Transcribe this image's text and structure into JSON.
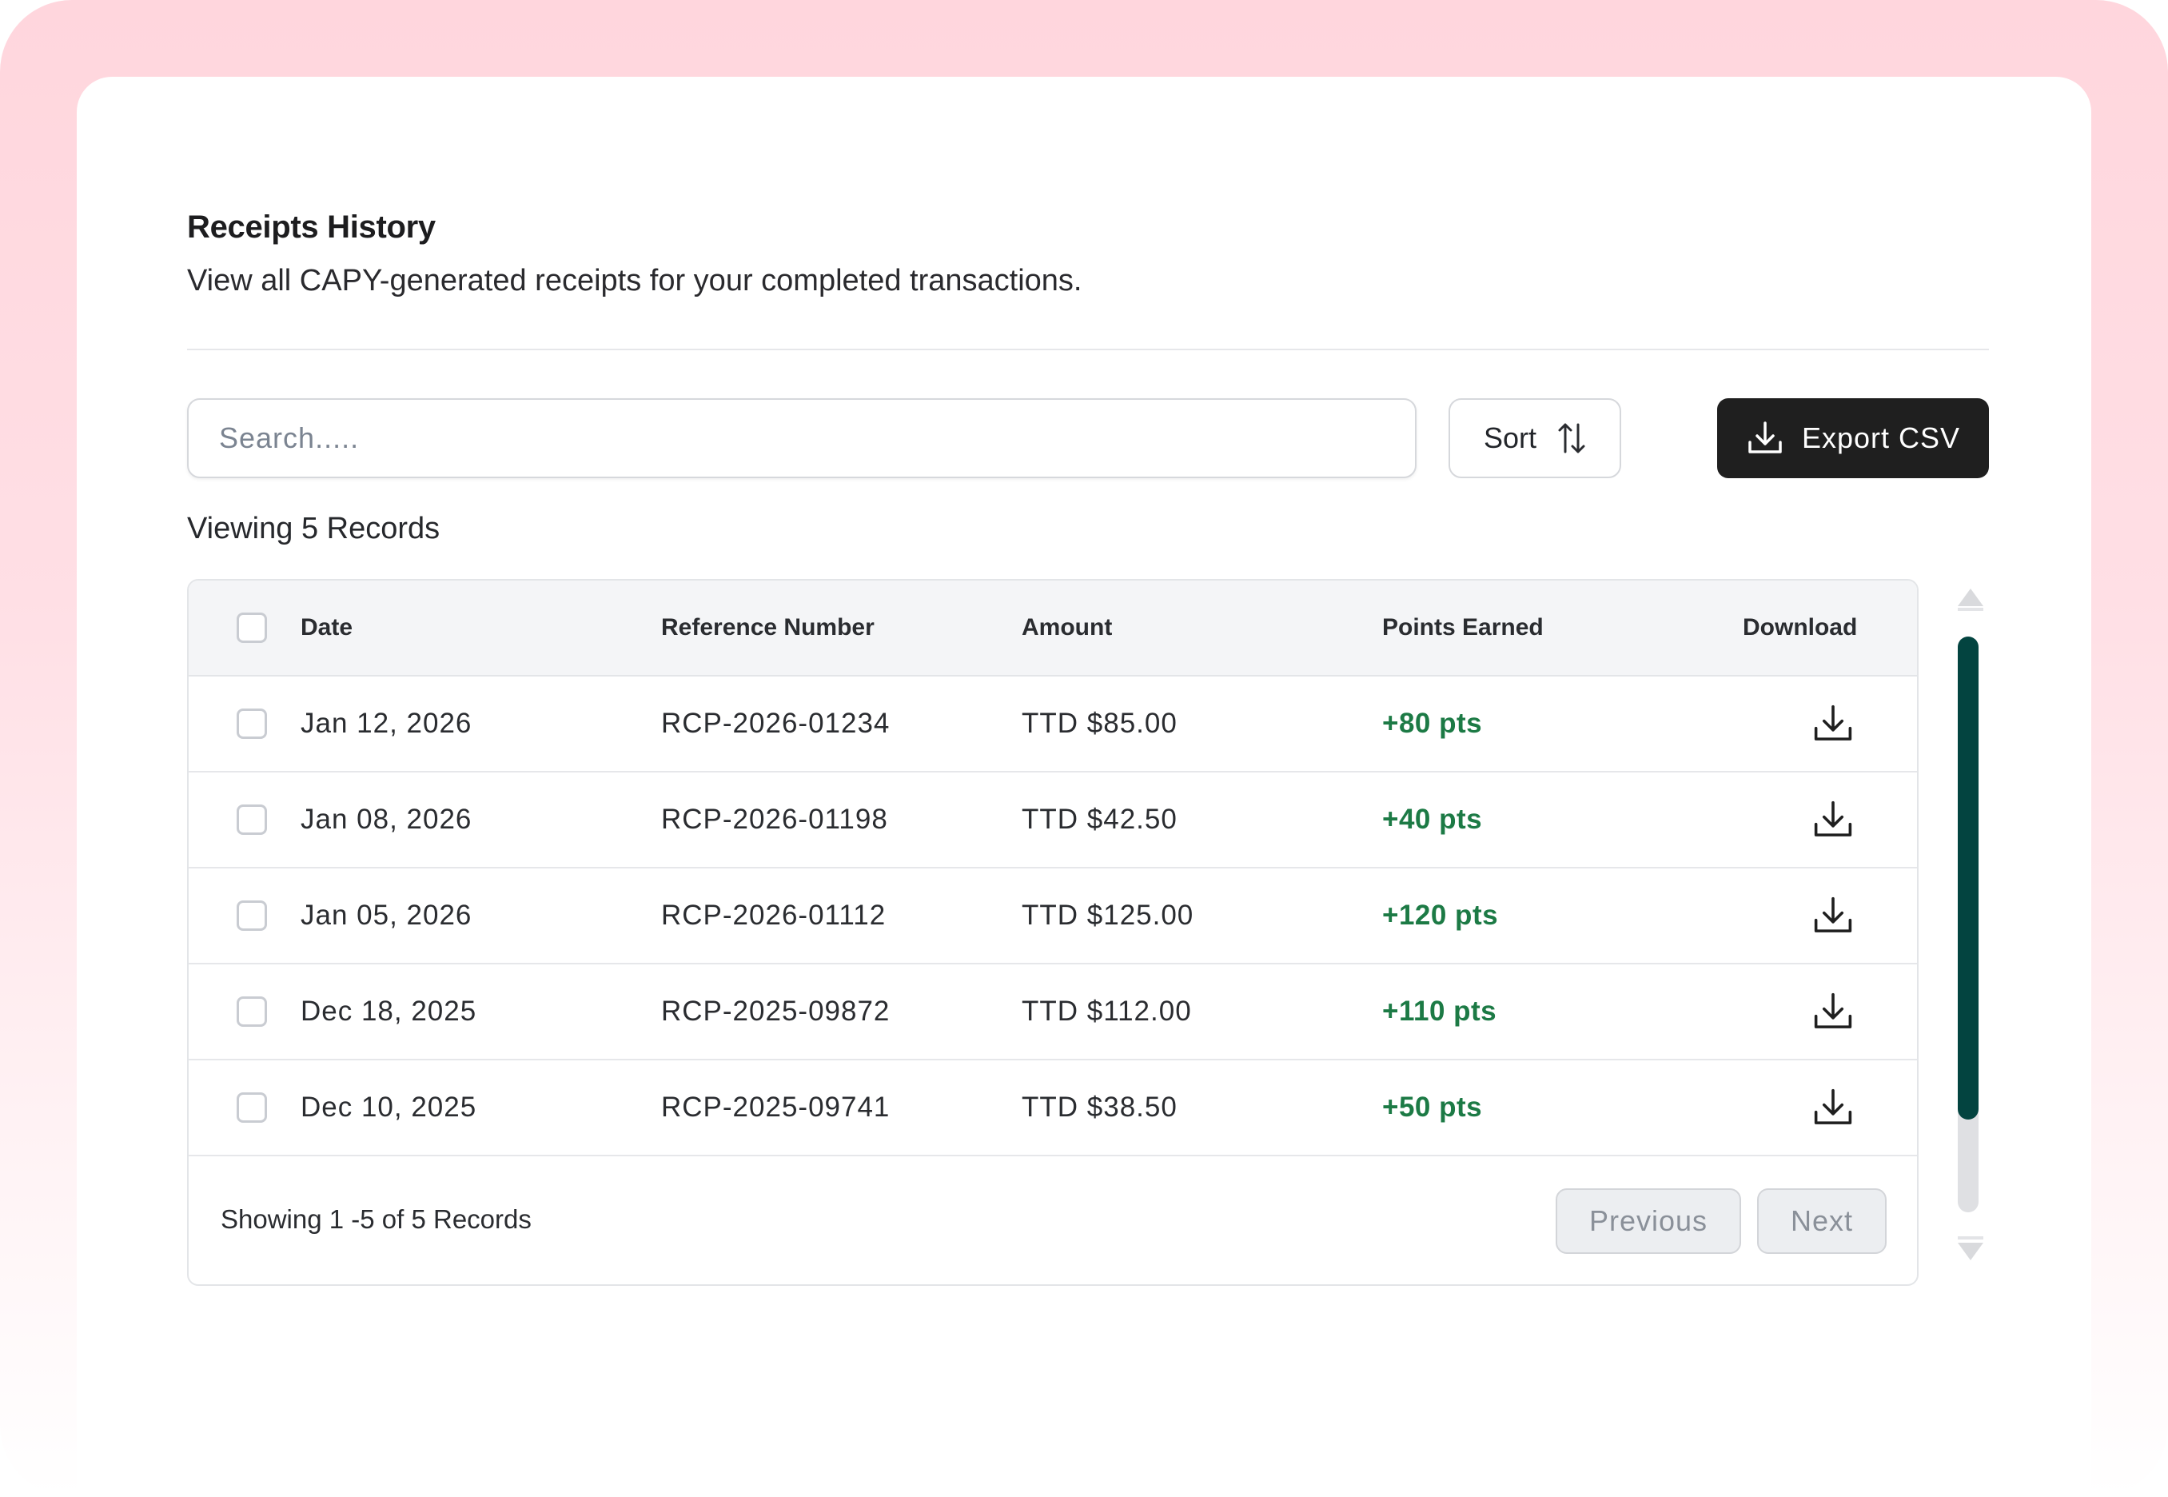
{
  "header": {
    "title": "Receipts History",
    "subtitle": "View all CAPY-generated receipts for your completed transactions."
  },
  "toolbar": {
    "search_placeholder": "Search.....",
    "sort_label": "Sort",
    "sort_icon": "sort-arrows-icon",
    "export_label": "Export CSV",
    "export_icon": "download-icon"
  },
  "records_label": "Viewing 5 Records",
  "table": {
    "columns": [
      "Date",
      "Reference Number",
      "Amount",
      "Points Earned",
      "Download"
    ],
    "rows": [
      {
        "date": "Jan 12, 2026",
        "reference": "RCP-2026-01234",
        "amount": "TTD $85.00",
        "points": "+80 pts"
      },
      {
        "date": "Jan 08, 2026",
        "reference": "RCP-2026-01198",
        "amount": "TTD $42.50",
        "points": "+40 pts"
      },
      {
        "date": "Jan 05, 2026",
        "reference": "RCP-2026-01112",
        "amount": "TTD $125.00",
        "points": "+120 pts"
      },
      {
        "date": "Dec 18, 2025",
        "reference": "RCP-2025-09872",
        "amount": "TTD $112.00",
        "points": "+110 pts"
      },
      {
        "date": "Dec 10, 2025",
        "reference": "RCP-2025-09741",
        "amount": "TTD $38.50",
        "points": "+50 pts"
      }
    ]
  },
  "pagination": {
    "showing_text": "Showing 1 -5  of  5 Records",
    "previous_label": "Previous",
    "next_label": "Next"
  },
  "scrollbar": {
    "thumb_fraction": 0.84
  },
  "colors": {
    "accent_dark": "#1f1f1f",
    "points_green": "#1c7a45",
    "scroll_thumb": "#034440",
    "background_pink": "#ffd6dd"
  }
}
